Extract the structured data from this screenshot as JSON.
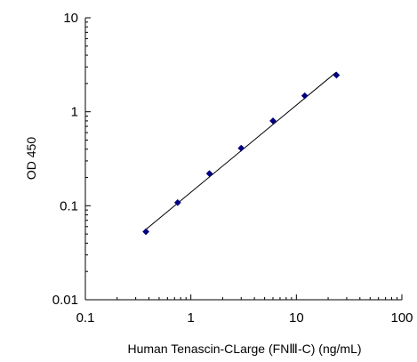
{
  "chart_data": {
    "type": "scatter",
    "title": "",
    "xlabel": "Human Tenascin-CLarge (FNⅢ-C)  (ng/mL)",
    "ylabel": "OD 450",
    "x_scale": "log",
    "y_scale": "log",
    "xlim": [
      0.1,
      100
    ],
    "ylim": [
      0.01,
      10
    ],
    "x_ticks": [
      0.1,
      1,
      10,
      100
    ],
    "x_tick_labels": [
      "0.1",
      "1",
      "10",
      "100"
    ],
    "y_ticks": [
      0.01,
      0.1,
      1,
      10
    ],
    "y_tick_labels": [
      "0.01",
      "0.1",
      "1",
      "10"
    ],
    "grid": false,
    "legend": "none",
    "marker_color": "#000080",
    "line_color": "#000000",
    "series": [
      {
        "x": [
          0.375,
          0.75,
          1.5,
          3,
          6,
          12,
          24
        ],
        "y": [
          0.053,
          0.108,
          0.22,
          0.41,
          0.8,
          1.48,
          2.45
        ]
      }
    ],
    "fit_line": {
      "x": [
        0.375,
        24
      ],
      "y": [
        0.056,
        2.65
      ]
    }
  }
}
